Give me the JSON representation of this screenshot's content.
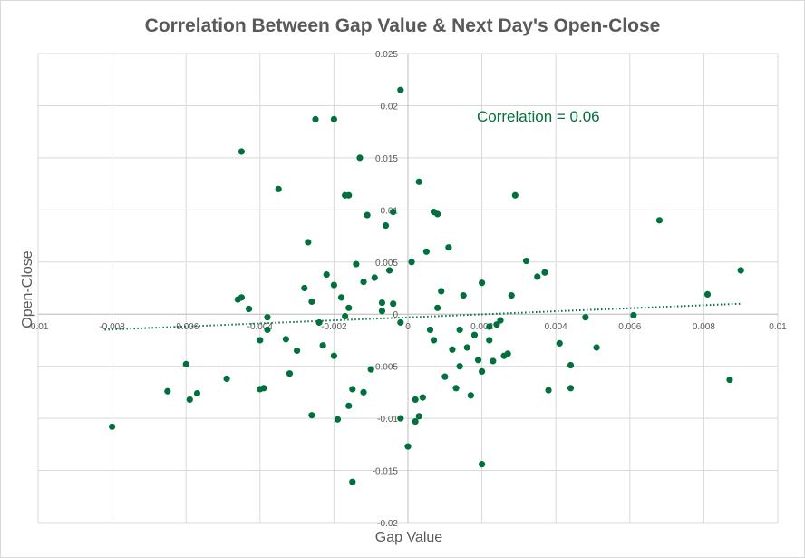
{
  "chart_data": {
    "type": "scatter",
    "title": "Correlation Between Gap Value & Next Day's Open-Close",
    "xlabel": "Gap Value",
    "ylabel": "Open-Close",
    "xlim": [
      -0.01,
      0.01
    ],
    "ylim": [
      -0.02,
      0.025
    ],
    "x_ticks": [
      -0.01,
      -0.008,
      -0.006,
      -0.004,
      -0.002,
      0,
      0.002,
      0.004,
      0.006,
      0.008,
      0.01
    ],
    "x_tick_labels": [
      "-0.01",
      "-0.008",
      "-0.006",
      "-0.004",
      "-0.002",
      "0",
      "0.002",
      "0.004",
      "0.006",
      "0.008",
      "0.01"
    ],
    "y_ticks": [
      -0.02,
      -0.015,
      -0.01,
      -0.005,
      0,
      0.005,
      0.01,
      0.015,
      0.02,
      0.025
    ],
    "y_tick_labels": [
      "-0.02",
      "-0.015",
      "-0.01",
      "-0.005",
      "0",
      "0.005",
      "0.01",
      "0.015",
      "0.02",
      "0.025"
    ],
    "grid": true,
    "legend": "none",
    "annotation": "Correlation = 0.06",
    "colors": {
      "points": "#00703c",
      "trendline": "#00703c",
      "grid": "#d9d9d9",
      "text": "#595959"
    },
    "trendline": {
      "style": "dotted linear",
      "x": [
        -0.0082,
        0.009
      ],
      "y": [
        -0.0015,
        0.001
      ]
    },
    "series": [
      {
        "x": [
          -0.0002,
          -0.002,
          -0.0025,
          -0.0013,
          -0.0045,
          -0.0035,
          -0.0017,
          -0.0016,
          -0.0027,
          -0.0006,
          -0.0004,
          0.0003,
          -0.0011,
          0.0007,
          0.0008,
          0.0029,
          0.0068,
          0.009,
          0.0081,
          0.0061,
          0.0032,
          0.0028,
          0.0035,
          0.0037,
          0.002,
          0.0048,
          0.0044,
          0.0044,
          0.0051,
          0.0041,
          0.0038,
          0.0087,
          -0.008,
          -0.006,
          -0.0065,
          -0.0057,
          -0.0059,
          -0.0049,
          -0.004,
          -0.0039,
          -0.0046,
          -0.0045,
          -0.0043,
          -0.0038,
          -0.0038,
          -0.004,
          -0.0033,
          -0.003,
          -0.0032,
          -0.0026,
          -0.0015,
          -0.0019,
          -0.0016,
          -0.0015,
          -0.0012,
          -0.001,
          -0.0002,
          0.0,
          0.0002,
          0.0003,
          0.0002,
          0.0004,
          0.0013,
          0.0017,
          0.002,
          0.0022,
          0.002,
          0.0015,
          -0.0004,
          -0.0007,
          -0.0002,
          0.0006,
          0.0008,
          0.0009,
          -0.0009,
          -0.0005,
          0.0001,
          0.0005,
          0.0011,
          -0.0014,
          -0.0012,
          -0.0007,
          0.0007,
          0.0012,
          0.0018,
          0.0025,
          0.0027,
          0.0019,
          0.0014,
          0.001,
          -0.002,
          -0.0023,
          -0.0024,
          -0.0026,
          -0.0028,
          -0.0022,
          -0.002,
          -0.0018,
          -0.0017,
          -0.0016,
          0.0022,
          0.0024,
          0.0026,
          0.0023,
          0.0016,
          0.0014
        ],
        "y": [
          0.0215,
          0.0187,
          0.0187,
          0.015,
          0.0156,
          0.012,
          0.0114,
          0.0114,
          0.0069,
          0.0085,
          0.0098,
          0.0127,
          0.0095,
          0.0098,
          0.0096,
          0.0114,
          0.009,
          0.0042,
          0.0019,
          -0.0001,
          0.0051,
          0.0018,
          0.0036,
          0.004,
          -0.0144,
          -0.0003,
          -0.0049,
          -0.0071,
          -0.0032,
          -0.0028,
          -0.0073,
          -0.0063,
          -0.0108,
          -0.0048,
          -0.0074,
          -0.0076,
          -0.0082,
          -0.0062,
          -0.0072,
          -0.0071,
          0.0014,
          0.0016,
          0.0005,
          -0.0003,
          -0.0015,
          -0.0025,
          -0.0024,
          -0.0035,
          -0.0057,
          -0.0097,
          -0.0161,
          -0.0101,
          -0.0088,
          -0.0072,
          -0.0075,
          -0.0053,
          -0.01,
          -0.0127,
          -0.0103,
          -0.0098,
          -0.0082,
          -0.008,
          -0.0071,
          -0.0078,
          -0.0055,
          -0.0012,
          0.003,
          0.0018,
          0.001,
          0.0003,
          -0.0008,
          -0.0015,
          0.0006,
          0.0022,
          0.0035,
          0.0042,
          0.005,
          0.006,
          0.0064,
          0.0048,
          0.0031,
          0.0011,
          -0.0025,
          -0.0034,
          -0.002,
          -0.0006,
          -0.0038,
          -0.0044,
          -0.005,
          -0.006,
          -0.004,
          -0.003,
          -0.0008,
          0.0012,
          0.0025,
          0.0038,
          0.0028,
          0.0016,
          -0.0002,
          0.0006,
          -0.0025,
          -0.001,
          -0.004,
          -0.0045,
          -0.0032,
          -0.0015
        ]
      }
    ]
  }
}
